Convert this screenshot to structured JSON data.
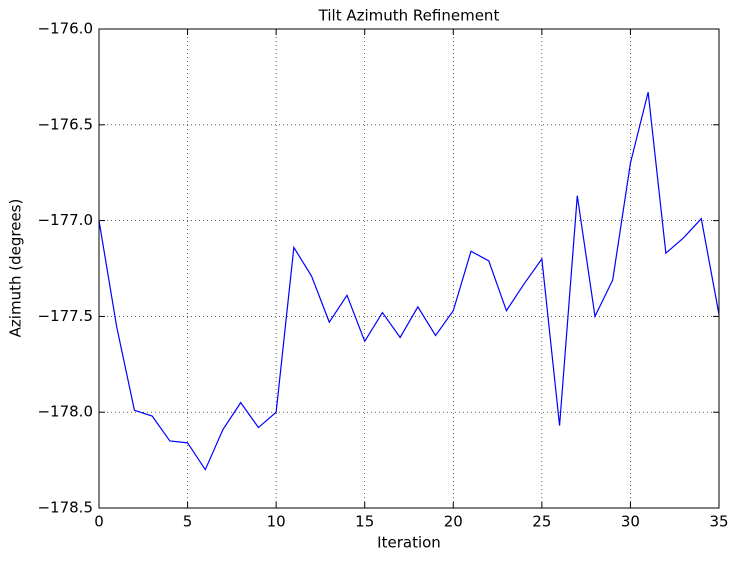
{
  "chart_data": {
    "type": "line",
    "title": "Tilt Azimuth Refinement",
    "x_label": "Iteration",
    "y_label": "Azimuth (degrees)",
    "x": [
      0,
      1,
      2,
      3,
      4,
      5,
      6,
      7,
      8,
      9,
      10,
      11,
      12,
      13,
      14,
      15,
      16,
      17,
      18,
      19,
      20,
      21,
      22,
      23,
      24,
      25,
      26,
      27,
      28,
      29,
      30,
      31,
      32,
      33,
      34,
      35
    ],
    "series": [
      {
        "name": "Azimuth",
        "color": "#0000ff",
        "values": [
          -177.0,
          -177.555,
          -177.99,
          -178.02,
          -178.15,
          -178.16,
          -178.3,
          -178.09,
          -177.95,
          -178.08,
          -178.0,
          -177.14,
          -177.29,
          -177.53,
          -177.39,
          -177.63,
          -177.48,
          -177.61,
          -177.45,
          -177.6,
          -177.47,
          -177.16,
          -177.21,
          -177.47,
          -177.33,
          -177.2,
          -178.07,
          -176.87,
          -177.5,
          -177.31,
          -176.7,
          -176.33,
          -177.17,
          -177.09,
          -176.99,
          -177.49
        ]
      }
    ],
    "xlim": [
      0,
      35
    ],
    "xticks": [
      0,
      5,
      10,
      15,
      20,
      25,
      30,
      35
    ],
    "ylim": [
      -178.5,
      -176.0
    ],
    "yticks": [
      {
        "value": -178.5,
        "label": "−178.5"
      },
      {
        "value": -178.0,
        "label": "−178.0"
      },
      {
        "value": -177.5,
        "label": "−177.5"
      },
      {
        "value": -177.0,
        "label": "−177.0"
      },
      {
        "value": -176.5,
        "label": "−176.5"
      },
      {
        "value": -176.0,
        "label": "−176.0"
      }
    ],
    "grid": true
  }
}
